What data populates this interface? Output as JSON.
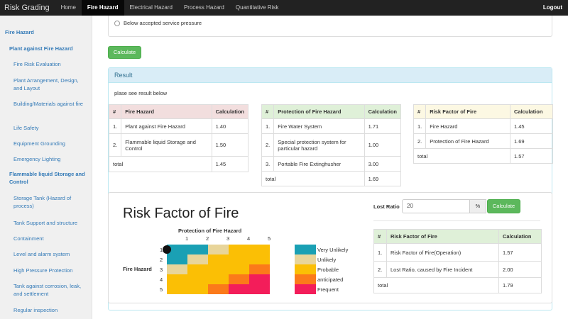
{
  "nav": {
    "brand": "Risk Grading",
    "items": [
      "Home",
      "Fire Hazard",
      "Electrical Hazard",
      "Process Hazard",
      "Quantitative Risk"
    ],
    "active_index": 1,
    "logout": "Logout"
  },
  "sidebar": [
    {
      "label": "Fire Hazard",
      "level": 1
    },
    {
      "label": "Plant against Fire Hazard",
      "level": 2
    },
    {
      "label": "Fire Risk Evaluation",
      "level": 3
    },
    {
      "label": "Plant Arrangement, Design, and Layout",
      "level": 3
    },
    {
      "label": "Building/Materials against fire",
      "level": 3
    },
    {
      "label": "Life Safety",
      "level": 3
    },
    {
      "label": "Equipment Grounding",
      "level": 3
    },
    {
      "label": "Emergency Lighting",
      "level": 3
    },
    {
      "label": "Flammable liquid Storage and Control",
      "level": 2
    },
    {
      "label": "Storage Tank (Hazard of process)",
      "level": 3
    },
    {
      "label": "Tank Support and structure",
      "level": 3
    },
    {
      "label": "Containment",
      "level": 3
    },
    {
      "label": "Level and alarm system",
      "level": 3
    },
    {
      "label": "High Pressure Protection",
      "level": 3
    },
    {
      "label": "Tank against corrosion, leak, and settlement",
      "level": 3
    },
    {
      "label": "Regular inspection",
      "level": 3
    }
  ],
  "form": {
    "radio_label": "Below accepted service pressure",
    "calculate": "Calculate"
  },
  "result": {
    "heading": "Result",
    "note": "plase see result below",
    "tables": [
      {
        "headers": [
          "#",
          "Fire Hazard",
          "Calculation"
        ],
        "rows": [
          [
            "1.",
            "Plant against Fire Hazard",
            "1.40"
          ],
          [
            "2.",
            "Flammable liquid Storage and Control",
            "1.50"
          ]
        ],
        "total_label": "total",
        "total": "1.45"
      },
      {
        "headers": [
          "#",
          "Protection of Fire Hazard",
          "Calculation"
        ],
        "rows": [
          [
            "1.",
            "Fire Water System",
            "1.71"
          ],
          [
            "2.",
            "Special protection system for particular hazard",
            "1.00"
          ],
          [
            "3.",
            "Portable Fire Extinghusher",
            "3.00"
          ]
        ],
        "total_label": "total",
        "total": "1.69"
      },
      {
        "headers": [
          "#",
          "Risk Factor of Fire",
          "Calculation"
        ],
        "rows": [
          [
            "1.",
            "Fire Hazard",
            "1.45"
          ],
          [
            "2.",
            "Protection of Fire Hazard",
            "1.69"
          ]
        ],
        "total_label": "total",
        "total": "1.57"
      }
    ]
  },
  "risk": {
    "title": "Risk Factor of Fire",
    "matrix_col_title": "Protection of Fire Hazard",
    "matrix_row_title": "Fire Hazard",
    "col_labels": [
      "1",
      "2",
      "3",
      "4",
      "5"
    ],
    "row_labels": [
      "1",
      "2",
      "3",
      "4",
      "5"
    ],
    "matrix_levels": [
      [
        0,
        0,
        1,
        2,
        2
      ],
      [
        0,
        1,
        2,
        2,
        2
      ],
      [
        1,
        2,
        2,
        2,
        3
      ],
      [
        2,
        2,
        2,
        3,
        4
      ],
      [
        2,
        2,
        3,
        4,
        4
      ]
    ],
    "marker": {
      "row": 1,
      "col": 1
    },
    "legend": [
      {
        "label": "Very Unlikely",
        "color": "#1aa0b4"
      },
      {
        "label": "Unlikely",
        "color": "#e8d59a"
      },
      {
        "label": "Probable",
        "color": "#fbbf05"
      },
      {
        "label": "anticipated",
        "color": "#fb7a1a"
      },
      {
        "label": "Frequent",
        "color": "#f31d5a"
      }
    ],
    "lost_ratio_label": "Lost Ratio",
    "lost_ratio_value": "20",
    "lost_ratio_unit": "%",
    "calculate": "Calculate",
    "table": {
      "headers": [
        "#",
        "Risk Factor of Fire",
        "Calculation"
      ],
      "rows": [
        [
          "1.",
          "Risk Factor of Fire(Operation)",
          "1.57"
        ],
        [
          "2.",
          "Lost Ratio, caused by Fire Incident",
          "2.00"
        ]
      ],
      "total_label": "total",
      "total": "1.79"
    }
  }
}
